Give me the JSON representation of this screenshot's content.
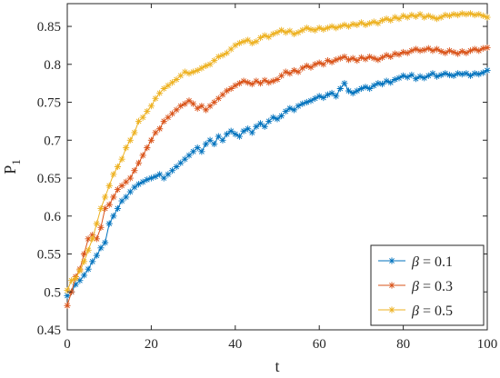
{
  "chart_data": {
    "type": "line",
    "xlabel": "t",
    "ylabel": "P",
    "ylabel_sub": "1",
    "xlim": [
      0,
      100
    ],
    "ylim": [
      0.45,
      0.88
    ],
    "xticks": [
      0,
      20,
      40,
      60,
      80,
      100
    ],
    "yticks": [
      0.45,
      0.5,
      0.55,
      0.6,
      0.65,
      0.7,
      0.75,
      0.8,
      0.85
    ],
    "grid": false,
    "legend_position": "bottom-right",
    "marker": "asterisk",
    "series": [
      {
        "name": "β = 0.1",
        "legend_symbol": "β",
        "legend_value": "= 0.1",
        "color": "#0072BD",
        "x": [
          0,
          1,
          2,
          3,
          4,
          5,
          6,
          7,
          8,
          9,
          10,
          11,
          12,
          13,
          14,
          15,
          16,
          17,
          18,
          19,
          20,
          21,
          22,
          23,
          24,
          25,
          26,
          27,
          28,
          29,
          30,
          31,
          32,
          33,
          34,
          35,
          36,
          37,
          38,
          39,
          40,
          41,
          42,
          43,
          44,
          45,
          46,
          47,
          48,
          49,
          50,
          51,
          52,
          53,
          54,
          55,
          56,
          57,
          58,
          59,
          60,
          61,
          62,
          63,
          64,
          65,
          66,
          67,
          68,
          69,
          70,
          71,
          72,
          73,
          74,
          75,
          76,
          77,
          78,
          79,
          80,
          81,
          82,
          83,
          84,
          85,
          86,
          87,
          88,
          89,
          90,
          91,
          92,
          93,
          94,
          95,
          96,
          97,
          98,
          99,
          100
        ],
        "y": [
          0.495,
          0.5,
          0.51,
          0.515,
          0.522,
          0.53,
          0.54,
          0.548,
          0.558,
          0.565,
          0.59,
          0.6,
          0.61,
          0.62,
          0.625,
          0.632,
          0.638,
          0.642,
          0.645,
          0.648,
          0.65,
          0.652,
          0.655,
          0.65,
          0.655,
          0.66,
          0.665,
          0.67,
          0.675,
          0.68,
          0.685,
          0.69,
          0.685,
          0.695,
          0.7,
          0.695,
          0.705,
          0.7,
          0.708,
          0.712,
          0.708,
          0.705,
          0.712,
          0.715,
          0.71,
          0.718,
          0.722,
          0.718,
          0.725,
          0.73,
          0.728,
          0.732,
          0.738,
          0.742,
          0.74,
          0.745,
          0.748,
          0.75,
          0.752,
          0.755,
          0.758,
          0.756,
          0.76,
          0.762,
          0.758,
          0.768,
          0.775,
          0.765,
          0.762,
          0.765,
          0.768,
          0.77,
          0.768,
          0.772,
          0.775,
          0.774,
          0.778,
          0.776,
          0.78,
          0.782,
          0.785,
          0.783,
          0.786,
          0.781,
          0.784,
          0.782,
          0.785,
          0.788,
          0.784,
          0.786,
          0.788,
          0.786,
          0.785,
          0.788,
          0.787,
          0.788,
          0.785,
          0.788,
          0.787,
          0.789,
          0.792
        ]
      },
      {
        "name": "β = 0.3",
        "legend_symbol": "β",
        "legend_value": "= 0.3",
        "color": "#D95319",
        "x": [
          0,
          1,
          2,
          3,
          4,
          5,
          6,
          7,
          8,
          9,
          10,
          11,
          12,
          13,
          14,
          15,
          16,
          17,
          18,
          19,
          20,
          21,
          22,
          23,
          24,
          25,
          26,
          27,
          28,
          29,
          30,
          31,
          32,
          33,
          34,
          35,
          36,
          37,
          38,
          39,
          40,
          41,
          42,
          43,
          44,
          45,
          46,
          47,
          48,
          49,
          50,
          51,
          52,
          53,
          54,
          55,
          56,
          57,
          58,
          59,
          60,
          61,
          62,
          63,
          64,
          65,
          66,
          67,
          68,
          69,
          70,
          71,
          72,
          73,
          74,
          75,
          76,
          77,
          78,
          79,
          80,
          81,
          82,
          83,
          84,
          85,
          86,
          87,
          88,
          89,
          90,
          91,
          92,
          93,
          94,
          95,
          96,
          97,
          98,
          99,
          100
        ],
        "y": [
          0.482,
          0.5,
          0.52,
          0.53,
          0.55,
          0.57,
          0.575,
          0.57,
          0.585,
          0.61,
          0.615,
          0.625,
          0.635,
          0.64,
          0.645,
          0.65,
          0.66,
          0.67,
          0.68,
          0.69,
          0.7,
          0.71,
          0.715,
          0.725,
          0.73,
          0.735,
          0.74,
          0.745,
          0.748,
          0.752,
          0.748,
          0.742,
          0.745,
          0.74,
          0.745,
          0.75,
          0.755,
          0.76,
          0.765,
          0.768,
          0.772,
          0.775,
          0.778,
          0.776,
          0.774,
          0.778,
          0.775,
          0.779,
          0.776,
          0.778,
          0.78,
          0.785,
          0.79,
          0.788,
          0.792,
          0.79,
          0.795,
          0.798,
          0.796,
          0.8,
          0.802,
          0.8,
          0.805,
          0.803,
          0.806,
          0.808,
          0.81,
          0.806,
          0.808,
          0.805,
          0.809,
          0.807,
          0.81,
          0.808,
          0.806,
          0.809,
          0.812,
          0.81,
          0.814,
          0.813,
          0.816,
          0.815,
          0.818,
          0.82,
          0.818,
          0.819,
          0.821,
          0.818,
          0.82,
          0.817,
          0.815,
          0.818,
          0.816,
          0.814,
          0.817,
          0.815,
          0.818,
          0.82,
          0.818,
          0.821,
          0.822
        ]
      },
      {
        "name": "β = 0.5",
        "legend_symbol": "β",
        "legend_value": "= 0.5",
        "color": "#EDB120",
        "x": [
          0,
          1,
          2,
          3,
          4,
          5,
          6,
          7,
          8,
          9,
          10,
          11,
          12,
          13,
          14,
          15,
          16,
          17,
          18,
          19,
          20,
          21,
          22,
          23,
          24,
          25,
          26,
          27,
          28,
          29,
          30,
          31,
          32,
          33,
          34,
          35,
          36,
          37,
          38,
          39,
          40,
          41,
          42,
          43,
          44,
          45,
          46,
          47,
          48,
          49,
          50,
          51,
          52,
          53,
          54,
          55,
          56,
          57,
          58,
          59,
          60,
          61,
          62,
          63,
          64,
          65,
          66,
          67,
          68,
          69,
          70,
          71,
          72,
          73,
          74,
          75,
          76,
          77,
          78,
          79,
          80,
          81,
          82,
          83,
          84,
          85,
          86,
          87,
          88,
          89,
          90,
          91,
          92,
          93,
          94,
          95,
          96,
          97,
          98,
          99,
          100
        ],
        "y": [
          0.502,
          0.515,
          0.518,
          0.528,
          0.54,
          0.555,
          0.57,
          0.59,
          0.61,
          0.625,
          0.64,
          0.655,
          0.665,
          0.675,
          0.69,
          0.7,
          0.71,
          0.725,
          0.73,
          0.738,
          0.745,
          0.755,
          0.762,
          0.768,
          0.772,
          0.776,
          0.78,
          0.785,
          0.79,
          0.788,
          0.79,
          0.792,
          0.795,
          0.798,
          0.8,
          0.805,
          0.81,
          0.812,
          0.815,
          0.82,
          0.825,
          0.828,
          0.83,
          0.832,
          0.828,
          0.83,
          0.835,
          0.838,
          0.836,
          0.84,
          0.842,
          0.845,
          0.842,
          0.844,
          0.84,
          0.842,
          0.845,
          0.848,
          0.846,
          0.845,
          0.848,
          0.846,
          0.848,
          0.85,
          0.848,
          0.85,
          0.852,
          0.85,
          0.853,
          0.852,
          0.855,
          0.852,
          0.854,
          0.856,
          0.854,
          0.858,
          0.86,
          0.858,
          0.862,
          0.86,
          0.864,
          0.862,
          0.865,
          0.863,
          0.866,
          0.862,
          0.864,
          0.862,
          0.86,
          0.862,
          0.865,
          0.864,
          0.866,
          0.865,
          0.867,
          0.866,
          0.867,
          0.865,
          0.866,
          0.864,
          0.862
        ]
      }
    ]
  }
}
